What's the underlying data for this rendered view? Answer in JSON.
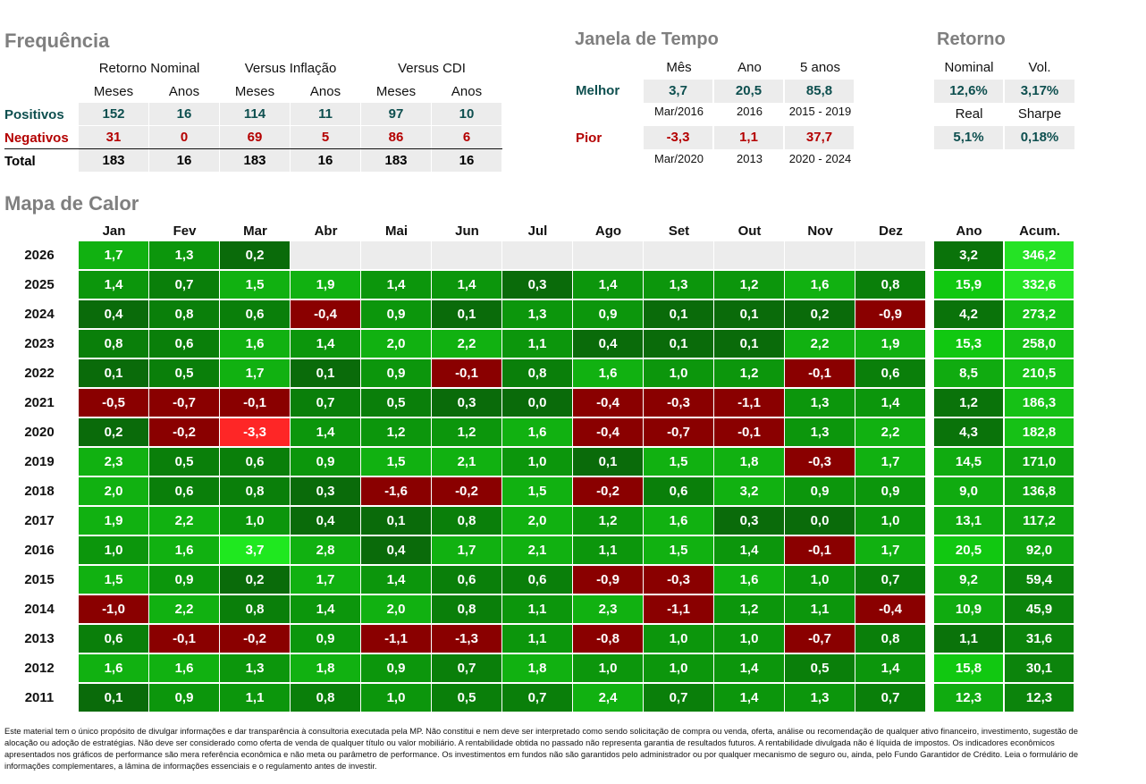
{
  "frequencia": {
    "title": "Frequência",
    "groups": [
      "Retorno Nominal",
      "Versus Inflação",
      "Versus CDI"
    ],
    "subheaders": [
      "Meses",
      "Anos",
      "Meses",
      "Anos",
      "Meses",
      "Anos"
    ],
    "rows": [
      {
        "label": "Positivos",
        "values": [
          "152",
          "16",
          "114",
          "11",
          "97",
          "10"
        ]
      },
      {
        "label": "Negativos",
        "values": [
          "31",
          "0",
          "69",
          "5",
          "86",
          "6"
        ]
      },
      {
        "label": "Total",
        "values": [
          "183",
          "16",
          "183",
          "16",
          "183",
          "16"
        ]
      }
    ]
  },
  "janela": {
    "title": "Janela de Tempo",
    "headers": [
      "Mês",
      "Ano",
      "5 anos"
    ],
    "melhor": {
      "label": "Melhor",
      "values": [
        "3,7",
        "20,5",
        "85,8"
      ],
      "periods": [
        "Mar/2016",
        "2016",
        "2015 - 2019"
      ]
    },
    "pior": {
      "label": "Pior",
      "values": [
        "-3,3",
        "1,1",
        "37,7"
      ],
      "periods": [
        "Mar/2020",
        "2013",
        "2020 - 2024"
      ]
    }
  },
  "retorno": {
    "title": "Retorno",
    "nominal_label": "Nominal",
    "nominal_value": "12,6%",
    "vol_label": "Vol.",
    "vol_value": "3,17%",
    "real_label": "Real",
    "real_value": "5,1%",
    "sharpe_label": "Sharpe",
    "sharpe_value": "0,18%"
  },
  "chart_data": {
    "type": "heatmap",
    "title": "Mapa de Calor",
    "months": [
      "Jan",
      "Fev",
      "Mar",
      "Abr",
      "Mai",
      "Jun",
      "Jul",
      "Ago",
      "Set",
      "Out",
      "Nov",
      "Dez"
    ],
    "ano_label": "Ano",
    "acum_label": "Acum.",
    "rows": [
      {
        "year": "2026",
        "months": [
          "1,7",
          "1,3",
          "0,2",
          null,
          null,
          null,
          null,
          null,
          null,
          null,
          null,
          null
        ],
        "ano": "3,2",
        "acum": "346,2"
      },
      {
        "year": "2025",
        "months": [
          "1,4",
          "0,7",
          "1,5",
          "1,9",
          "1,4",
          "1,4",
          "0,3",
          "1,4",
          "1,3",
          "1,2",
          "1,6",
          "0,8"
        ],
        "ano": "15,9",
        "acum": "332,6"
      },
      {
        "year": "2024",
        "months": [
          "0,4",
          "0,8",
          "0,6",
          "-0,4",
          "0,9",
          "0,1",
          "1,3",
          "0,9",
          "0,1",
          "0,1",
          "0,2",
          "-0,9"
        ],
        "ano": "4,2",
        "acum": "273,2"
      },
      {
        "year": "2023",
        "months": [
          "0,8",
          "0,6",
          "1,6",
          "1,4",
          "2,0",
          "2,2",
          "1,1",
          "0,4",
          "0,1",
          "0,1",
          "2,2",
          "1,9"
        ],
        "ano": "15,3",
        "acum": "258,0"
      },
      {
        "year": "2022",
        "months": [
          "0,1",
          "0,5",
          "1,7",
          "0,1",
          "0,9",
          "-0,1",
          "0,8",
          "1,6",
          "1,0",
          "1,2",
          "-0,1",
          "0,6"
        ],
        "ano": "8,5",
        "acum": "210,5"
      },
      {
        "year": "2021",
        "months": [
          "-0,5",
          "-0,7",
          "-0,1",
          "0,7",
          "0,5",
          "0,3",
          "0,0",
          "-0,4",
          "-0,3",
          "-1,1",
          "1,3",
          "1,4"
        ],
        "ano": "1,2",
        "acum": "186,3"
      },
      {
        "year": "2020",
        "months": [
          "0,2",
          "-0,2",
          "-3,3",
          "1,4",
          "1,2",
          "1,2",
          "1,6",
          "-0,4",
          "-0,7",
          "-0,1",
          "1,3",
          "2,2"
        ],
        "ano": "4,3",
        "acum": "182,8"
      },
      {
        "year": "2019",
        "months": [
          "2,3",
          "0,5",
          "0,6",
          "0,9",
          "1,5",
          "2,1",
          "1,0",
          "0,1",
          "1,5",
          "1,8",
          "-0,3",
          "1,7"
        ],
        "ano": "14,5",
        "acum": "171,0"
      },
      {
        "year": "2018",
        "months": [
          "2,0",
          "0,6",
          "0,8",
          "0,3",
          "-1,6",
          "-0,2",
          "1,5",
          "-0,2",
          "0,6",
          "3,2",
          "0,9",
          "0,9"
        ],
        "ano": "9,0",
        "acum": "136,8"
      },
      {
        "year": "2017",
        "months": [
          "1,9",
          "2,2",
          "1,0",
          "0,4",
          "0,1",
          "0,8",
          "2,0",
          "1,2",
          "1,6",
          "0,3",
          "0,0",
          "1,0"
        ],
        "ano": "13,1",
        "acum": "117,2"
      },
      {
        "year": "2016",
        "months": [
          "1,0",
          "1,6",
          "3,7",
          "2,8",
          "0,4",
          "1,7",
          "2,1",
          "1,1",
          "1,5",
          "1,4",
          "-0,1",
          "1,7"
        ],
        "ano": "20,5",
        "acum": "92,0"
      },
      {
        "year": "2015",
        "months": [
          "1,5",
          "0,9",
          "0,2",
          "1,7",
          "1,4",
          "0,6",
          "0,6",
          "-0,9",
          "-0,3",
          "1,6",
          "1,0",
          "0,7"
        ],
        "ano": "9,2",
        "acum": "59,4"
      },
      {
        "year": "2014",
        "months": [
          "-1,0",
          "2,2",
          "0,8",
          "1,4",
          "2,0",
          "0,8",
          "1,1",
          "2,3",
          "-1,1",
          "1,2",
          "1,1",
          "-0,4"
        ],
        "ano": "10,9",
        "acum": "45,9"
      },
      {
        "year": "2013",
        "months": [
          "0,6",
          "-0,1",
          "-0,2",
          "0,9",
          "-1,1",
          "-1,3",
          "1,1",
          "-0,8",
          "1,0",
          "1,0",
          "-0,7",
          "0,8"
        ],
        "ano": "1,1",
        "acum": "31,6"
      },
      {
        "year": "2012",
        "months": [
          "1,6",
          "1,6",
          "1,3",
          "1,8",
          "0,9",
          "0,7",
          "1,8",
          "1,0",
          "1,0",
          "1,4",
          "0,5",
          "1,4"
        ],
        "ano": "15,8",
        "acum": "30,1"
      },
      {
        "year": "2011",
        "months": [
          "0,1",
          "0,9",
          "1,1",
          "0,8",
          "1,0",
          "0,5",
          "0,7",
          "2,4",
          "0,7",
          "1,4",
          "1,3",
          "0,7"
        ],
        "ano": "12,3",
        "acum": "12,3"
      }
    ]
  },
  "disclaimer": "Este material tem o único propósito de divulgar informações e dar transparência à consultoria executada pela MP. Não constitui e nem deve ser interpretado como sendo solicitação de compra ou venda, oferta, análise ou recomendação de qualquer ativo financeiro, investimento, sugestão de alocação ou adoção de estratégias. Não deve ser considerado como oferta de venda de qualquer título ou valor mobiliário. A rentabilidade obtida no passado não representa garantia de resultados futuros. A rentabilidade divulgada não é líquida de impostos. Os indicadores econômicos apresentados nos gráficos de performance são mera referência econômica e não meta ou parâmetro de performance. Os investimentos em fundos não são garantidos pelo administrador ou por qualquer mecanismo de seguro ou, ainda, pelo Fundo Garantidor de Crédito. Leia o formulário de informações complementares, a lâmina de informações essenciais e o regulamento antes de investir.",
  "colors": {
    "teal_text": "#0e4f4f",
    "red_text": "#b40000",
    "neutral_bg": "#ececec",
    "title_gray": "#7f7f7f"
  }
}
